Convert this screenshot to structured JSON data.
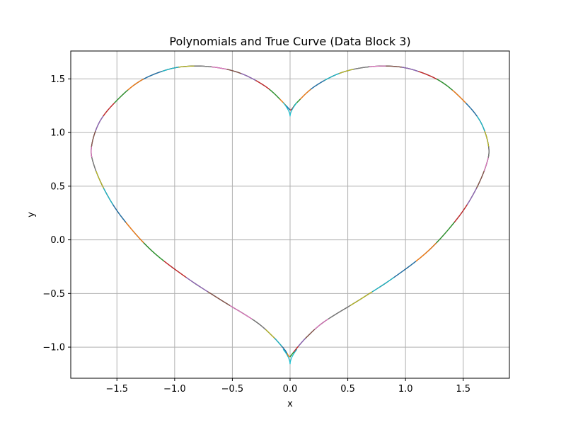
{
  "chart_data": {
    "type": "line",
    "title": "Polynomials and True Curve (Data Block 3)",
    "xlabel": "x",
    "ylabel": "y",
    "xlim": [
      -1.9,
      1.9
    ],
    "ylim": [
      -1.29,
      1.76
    ],
    "x_ticks": [
      -1.5,
      -1.0,
      -0.5,
      0.0,
      0.5,
      1.0,
      1.5
    ],
    "x_tick_labels": [
      "−1.5",
      "−1.0",
      "−0.5",
      "0.0",
      "0.5",
      "1.0",
      "1.5"
    ],
    "y_ticks": [
      -1.0,
      -0.5,
      0.0,
      0.5,
      1.0,
      1.5
    ],
    "y_tick_labels": [
      "−1.0",
      "−0.5",
      "0.0",
      "0.5",
      "1.0",
      "1.5"
    ],
    "grid": true,
    "legend": "none",
    "colors": {
      "true_curve": "#000000",
      "segment_palette": [
        "#1f77b4",
        "#ff7f0e",
        "#2ca02c",
        "#d62728",
        "#9467bd",
        "#8c564b",
        "#e377c2",
        "#7f7f7f",
        "#bcbd22",
        "#17becf"
      ],
      "grid": "#b0b0b0",
      "axes": "#000000"
    },
    "curve": {
      "shape": "heart",
      "points": [
        [
          0.0,
          1.21
        ],
        [
          -0.06,
          1.28
        ],
        [
          -0.2,
          1.42
        ],
        [
          -0.4,
          1.54
        ],
        [
          -0.6,
          1.6
        ],
        [
          -0.83,
          1.62
        ],
        [
          -1.05,
          1.59
        ],
        [
          -1.3,
          1.48
        ],
        [
          -1.5,
          1.3
        ],
        [
          -1.65,
          1.1
        ],
        [
          -1.72,
          0.87
        ],
        [
          -1.7,
          0.7
        ],
        [
          -1.6,
          0.45
        ],
        [
          -1.45,
          0.2
        ],
        [
          -1.2,
          -0.1
        ],
        [
          -0.9,
          -0.35
        ],
        [
          -0.6,
          -0.56
        ],
        [
          -0.3,
          -0.76
        ],
        [
          -0.15,
          -0.9
        ],
        [
          -0.05,
          -1.02
        ],
        [
          0.0,
          -1.09
        ],
        [
          0.05,
          -1.02
        ],
        [
          0.15,
          -0.9
        ],
        [
          0.3,
          -0.76
        ],
        [
          0.6,
          -0.56
        ],
        [
          0.9,
          -0.35
        ],
        [
          1.2,
          -0.1
        ],
        [
          1.45,
          0.2
        ],
        [
          1.6,
          0.45
        ],
        [
          1.7,
          0.7
        ],
        [
          1.72,
          0.87
        ],
        [
          1.65,
          1.1
        ],
        [
          1.5,
          1.3
        ],
        [
          1.3,
          1.48
        ],
        [
          1.05,
          1.59
        ],
        [
          0.83,
          1.62
        ],
        [
          0.6,
          1.6
        ],
        [
          0.4,
          1.54
        ],
        [
          0.2,
          1.42
        ],
        [
          0.06,
          1.28
        ],
        [
          0.0,
          1.21
        ]
      ],
      "cyan_top_cusp_y": 1.15,
      "cyan_bottom_cusp_y": -1.16
    }
  }
}
